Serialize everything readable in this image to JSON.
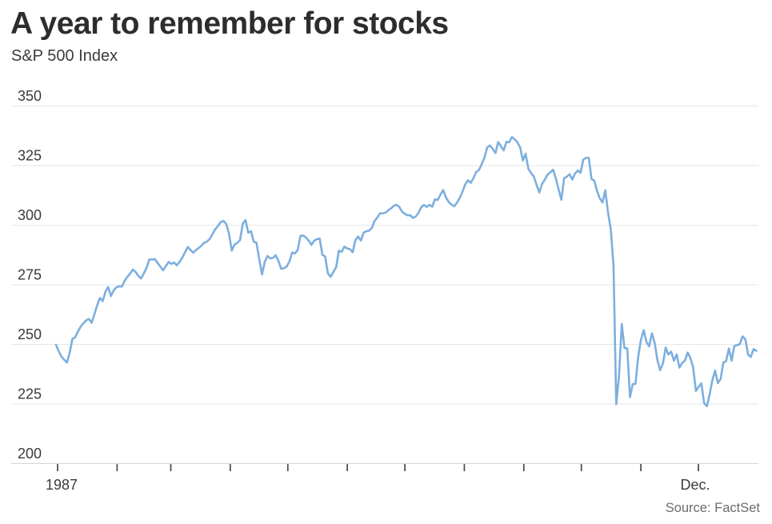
{
  "header": {
    "title": "A year to remember for stocks",
    "subtitle": "S&P 500 Index"
  },
  "footer": {
    "source": "Source: FactSet"
  },
  "chart_data": {
    "type": "line",
    "title": "A year to remember for stocks",
    "ylabel": "S&P 500 Index",
    "xlabel": "",
    "ylim": [
      200,
      350
    ],
    "y_ticks": [
      200,
      225,
      250,
      275,
      300,
      325,
      350
    ],
    "x_tick_marks": "monthly, Jan through Dec 1987",
    "x_ticks": [
      {
        "label": "1987",
        "month_index": 0
      },
      {
        "label": "Dec.",
        "month_index": 11
      }
    ],
    "grid": "horizontal",
    "legend": "none",
    "colors": {
      "line": "#7cafde",
      "grid": "#e6e6e6",
      "axis": "#d4d4d4",
      "tick_mark": "#4a4a4a",
      "label": "#3a3a3a",
      "title": "#2d2d2d",
      "source": "#6c6c6c"
    },
    "series": [
      {
        "name": "S&P 500 Index (daily close, late Dec 1986 – Dec 1987)",
        "values": [
          249.7,
          246.9,
          244.7,
          243.4,
          242.2,
          246.5,
          252.2,
          252.8,
          255.3,
          257.3,
          258.7,
          260.0,
          260.5,
          258.9,
          262.6,
          266.3,
          269.3,
          268.0,
          271.9,
          273.9,
          270.1,
          272.5,
          273.8,
          274.2,
          274.1,
          276.5,
          278.2,
          279.6,
          281.2,
          280.2,
          278.5,
          277.5,
          279.7,
          282.0,
          285.5,
          285.4,
          285.6,
          284.0,
          282.4,
          280.9,
          282.7,
          284.4,
          283.6,
          284.2,
          283.0,
          284.5,
          286.2,
          288.5,
          290.7,
          289.4,
          288.3,
          289.5,
          290.3,
          291.3,
          292.5,
          293.0,
          294.1,
          296.1,
          298.2,
          299.5,
          301.2,
          301.6,
          300.4,
          296.2,
          289.2,
          291.7,
          292.4,
          293.6,
          300.4,
          302.0,
          296.7,
          297.3,
          292.9,
          292.5,
          285.6,
          279.2,
          284.4,
          286.9,
          285.9,
          286.1,
          287.2,
          284.8,
          281.5,
          281.8,
          282.5,
          284.6,
          288.4,
          288.0,
          289.4,
          295.3,
          295.5,
          294.7,
          293.4,
          291.6,
          293.3,
          294.0,
          294.2,
          287.4,
          286.7,
          279.6,
          278.2,
          280.2,
          282.2,
          289.1,
          288.7,
          290.8,
          290.1,
          289.8,
          288.5,
          293.5,
          295.1,
          293.4,
          296.7,
          297.3,
          297.5,
          298.7,
          301.6,
          303.1,
          304.8,
          304.8,
          305.1,
          306.1,
          306.9,
          308.0,
          308.4,
          307.5,
          305.5,
          304.6,
          304.0,
          304.0,
          302.9,
          303.5,
          305.0,
          307.4,
          308.3,
          307.5,
          308.4,
          307.6,
          310.7,
          310.4,
          312.7,
          314.6,
          311.4,
          309.6,
          308.5,
          307.8,
          309.3,
          311.2,
          313.9,
          316.9,
          318.7,
          317.6,
          319.6,
          322.1,
          323.0,
          325.4,
          328.1,
          332.4,
          333.3,
          331.9,
          330.1,
          334.7,
          333.0,
          331.2,
          334.8,
          334.6,
          336.8,
          335.9,
          334.6,
          332.4,
          327.0,
          329.8,
          323.4,
          321.7,
          320.2,
          316.7,
          313.6,
          317.1,
          319.0,
          321.1,
          322.0,
          323.1,
          319.5,
          314.9,
          310.5,
          319.5,
          320.2,
          321.2,
          319.0,
          321.5,
          322.8,
          321.8,
          327.3,
          328.1,
          328.1,
          319.2,
          318.5,
          314.2,
          311.1,
          309.4,
          314.5,
          305.2,
          298.1,
          282.7,
          224.8,
          236.8,
          258.4,
          248.3,
          248.2,
          227.7,
          233.2,
          233.3,
          244.8,
          251.8,
          255.8,
          250.8,
          249.0,
          254.5,
          250.4,
          243.2,
          239.0,
          241.9,
          248.5,
          245.6,
          246.8,
          243.0,
          245.6,
          240.1,
          242.0,
          243.0,
          246.4,
          244.1,
          240.3,
          230.3,
          232.0,
          233.5,
          225.2,
          223.9,
          228.8,
          234.9,
          238.9,
          233.6,
          235.3,
          242.2,
          242.8,
          248.1,
          243.0,
          249.2,
          249.5,
          250.0,
          253.2,
          252.0,
          245.6,
          244.6,
          247.9,
          247.1
        ]
      }
    ]
  }
}
